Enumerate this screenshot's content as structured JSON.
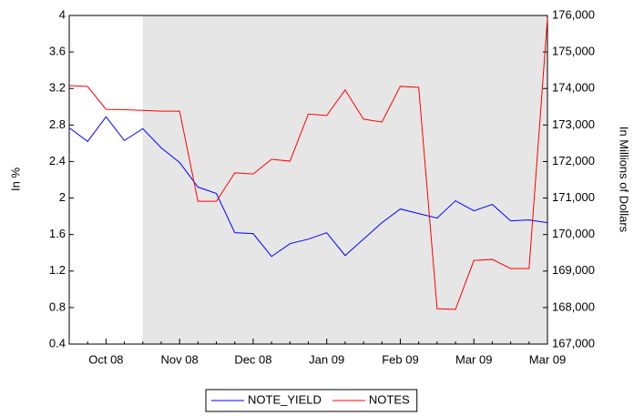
{
  "chart_data": {
    "type": "line",
    "categories": [
      null,
      null,
      "Oct 08",
      null,
      null,
      null,
      "Nov 08",
      null,
      null,
      null,
      "Dec 08",
      null,
      null,
      null,
      "Jan 09",
      null,
      null,
      null,
      "Feb 09",
      null,
      null,
      null,
      "Mar 09",
      null,
      null,
      null,
      "Mar 09"
    ],
    "series": [
      {
        "name": "NOTE_YIELD",
        "color": "#0000ff",
        "values": [
          2.77,
          2.62,
          2.89,
          2.63,
          2.76,
          2.55,
          2.39,
          2.12,
          2.05,
          1.62,
          1.61,
          1.36,
          1.5,
          1.55,
          1.62,
          1.37,
          1.55,
          1.73,
          1.88,
          1.83,
          1.78,
          1.97,
          1.86,
          1.93,
          1.75,
          1.76,
          1.73
        ]
      },
      {
        "name": "NOTES",
        "color": "#ff0000",
        "axis": "y2",
        "values": [
          174080,
          174055,
          173430,
          173420,
          173400,
          173380,
          173380,
          170910,
          170910,
          171690,
          171660,
          172060,
          172010,
          173300,
          173260,
          173960,
          173160,
          173080,
          174060,
          174030,
          167970,
          167950,
          169290,
          169320,
          169070,
          169070,
          175930
        ]
      }
    ],
    "ylabel": "In %",
    "y2label": "In Millions of Dollars",
    "ylim": [
      0.4,
      4.0
    ],
    "yticks": [
      0.4,
      0.8,
      1.2,
      1.6,
      2.0,
      2.4,
      2.8,
      3.2,
      3.6,
      4.0
    ],
    "y2lim": [
      167000,
      176000
    ],
    "y2ticks": [
      {
        "value": 167000,
        "label": "167,000"
      },
      {
        "value": 168000,
        "label": "168,000"
      },
      {
        "value": 169000,
        "label": "169,000"
      },
      {
        "value": 170000,
        "label": "170,000"
      },
      {
        "value": 171000,
        "label": "171,000"
      },
      {
        "value": 172000,
        "label": "172,000"
      },
      {
        "value": 173000,
        "label": "173,000"
      },
      {
        "value": 174000,
        "label": "174,000"
      },
      {
        "value": 175000,
        "label": "175,000"
      },
      {
        "value": 176000,
        "label": "176,000"
      }
    ],
    "shaded_from_index": 4,
    "shade_color": "#e6e6e6",
    "legend": "bottom"
  }
}
